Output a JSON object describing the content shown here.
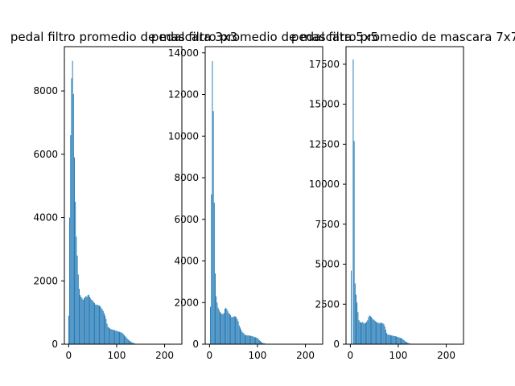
{
  "bar_color": "#1f77b4",
  "chart_data": [
    {
      "type": "bar",
      "title": "pedal filtro promedio de mascara 3x3",
      "xlabel": "",
      "ylabel": "",
      "xlim": [
        -9,
        236
      ],
      "ylim": [
        0,
        9400
      ],
      "xticks": [
        0,
        100,
        200
      ],
      "yticks": [
        0,
        2000,
        4000,
        6000,
        8000
      ],
      "x": [
        0,
        2,
        4,
        6,
        8,
        10,
        12,
        14,
        16,
        18,
        20,
        22,
        24,
        26,
        28,
        30,
        32,
        34,
        36,
        38,
        40,
        42,
        44,
        46,
        48,
        50,
        52,
        54,
        56,
        58,
        60,
        62,
        64,
        66,
        68,
        70,
        72,
        74,
        76,
        78,
        80,
        82,
        84,
        86,
        88,
        90,
        92,
        94,
        96,
        98,
        100,
        102,
        104,
        106,
        108,
        110,
        112,
        114,
        116,
        118,
        120,
        122,
        124,
        126,
        128,
        130,
        132,
        134,
        136,
        138,
        140,
        142,
        144,
        146,
        148,
        150,
        152,
        154,
        156,
        158,
        160,
        162,
        164,
        166,
        168,
        170,
        172,
        174,
        176,
        178,
        180,
        182,
        184,
        186,
        188,
        190,
        192,
        194,
        196,
        198,
        200,
        202,
        204,
        206,
        208,
        210,
        212,
        214,
        216,
        218,
        220
      ],
      "values": [
        900,
        4000,
        6600,
        8400,
        8950,
        7900,
        5900,
        4500,
        3400,
        2800,
        2200,
        1750,
        1550,
        1500,
        1450,
        1400,
        1450,
        1480,
        1520,
        1500,
        1550,
        1560,
        1500,
        1450,
        1400,
        1380,
        1330,
        1300,
        1250,
        1250,
        1240,
        1230,
        1220,
        1200,
        1150,
        1100,
        1050,
        980,
        900,
        800,
        650,
        550,
        520,
        500,
        480,
        470,
        460,
        450,
        440,
        430,
        420,
        410,
        400,
        390,
        380,
        370,
        350,
        320,
        280,
        250,
        220,
        180,
        150,
        120,
        100,
        80,
        60,
        45,
        30,
        20,
        10,
        5,
        3,
        2,
        1,
        0,
        0,
        0,
        0,
        0,
        0,
        0,
        0,
        0,
        0,
        0,
        0,
        0,
        0,
        0,
        0,
        0,
        0,
        0,
        0,
        0,
        0,
        0,
        0,
        0,
        0,
        0,
        0,
        0,
        0,
        0,
        0,
        0,
        0,
        0,
        0
      ]
    },
    {
      "type": "bar",
      "title": "pedal filtro promedio de mascara 5x5",
      "xlabel": "",
      "ylabel": "",
      "xlim": [
        -9,
        236
      ],
      "ylim": [
        0,
        14300
      ],
      "xticks": [
        0,
        100,
        200
      ],
      "yticks": [
        0,
        2000,
        4000,
        6000,
        8000,
        10000,
        12000,
        14000
      ],
      "x": [
        0,
        2,
        4,
        6,
        8,
        10,
        12,
        14,
        16,
        18,
        20,
        22,
        24,
        26,
        28,
        30,
        32,
        34,
        36,
        38,
        40,
        42,
        44,
        46,
        48,
        50,
        52,
        54,
        56,
        58,
        60,
        62,
        64,
        66,
        68,
        70,
        72,
        74,
        76,
        78,
        80,
        82,
        84,
        86,
        88,
        90,
        92,
        94,
        96,
        98,
        100,
        102,
        104,
        106,
        108,
        110,
        112,
        114,
        116,
        118,
        120,
        122,
        124,
        126,
        128,
        130,
        132,
        134,
        136,
        138,
        140,
        142,
        144,
        146,
        148,
        150,
        152,
        154,
        156,
        158,
        160,
        162,
        164,
        166,
        168,
        170,
        172,
        174,
        176,
        178,
        180,
        182,
        184,
        186,
        188,
        190,
        192,
        194,
        196,
        198,
        200,
        202,
        204,
        206,
        208,
        210,
        212,
        214,
        216,
        218,
        220
      ],
      "values": [
        0,
        1800,
        7200,
        13600,
        11200,
        6800,
        3400,
        2300,
        2000,
        1750,
        1650,
        1550,
        1500,
        1450,
        1450,
        1500,
        1700,
        1750,
        1700,
        1600,
        1500,
        1450,
        1400,
        1300,
        1300,
        1320,
        1340,
        1330,
        1300,
        1200,
        1100,
        900,
        800,
        700,
        600,
        550,
        500,
        450,
        440,
        430,
        420,
        420,
        410,
        400,
        390,
        380,
        360,
        340,
        330,
        320,
        300,
        250,
        200,
        150,
        120,
        80,
        50,
        40,
        30,
        20,
        10,
        5,
        3,
        2,
        1,
        0,
        0,
        0,
        0,
        0,
        0,
        0,
        0,
        0,
        0,
        0,
        0,
        0,
        0,
        0,
        0,
        0,
        0,
        0,
        0,
        0,
        0,
        0,
        0,
        0,
        0,
        0,
        0,
        0,
        0,
        0,
        0,
        0,
        0,
        0,
        0,
        0,
        0,
        0,
        0,
        0,
        0,
        0,
        0,
        0,
        0
      ]
    },
    {
      "type": "bar",
      "title": "pedal filtro promedio de mascara 7x7",
      "xlabel": "",
      "ylabel": "",
      "xlim": [
        -9,
        236
      ],
      "ylim": [
        0,
        18600
      ],
      "xticks": [
        0,
        100,
        200
      ],
      "yticks": [
        0,
        2500,
        5000,
        7500,
        10000,
        12500,
        15000,
        17500
      ],
      "x": [
        0,
        2,
        4,
        6,
        8,
        10,
        12,
        14,
        16,
        18,
        20,
        22,
        24,
        26,
        28,
        30,
        32,
        34,
        36,
        38,
        40,
        42,
        44,
        46,
        48,
        50,
        52,
        54,
        56,
        58,
        60,
        62,
        64,
        66,
        68,
        70,
        72,
        74,
        76,
        78,
        80,
        82,
        84,
        86,
        88,
        90,
        92,
        94,
        96,
        98,
        100,
        102,
        104,
        106,
        108,
        110,
        112,
        114,
        116,
        118,
        120,
        122,
        124,
        126,
        128,
        130,
        132,
        134,
        136,
        138,
        140,
        142,
        144,
        146,
        148,
        150,
        152,
        154,
        156,
        158,
        160,
        162,
        164,
        166,
        168,
        170,
        172,
        174,
        176,
        178,
        180,
        182,
        184,
        186,
        188,
        190,
        192,
        194,
        196,
        198,
        200,
        202,
        204,
        206,
        208,
        210,
        212,
        214,
        216,
        218,
        220
      ],
      "values": [
        0,
        4600,
        0,
        17800,
        12700,
        3800,
        3100,
        2600,
        2000,
        1500,
        1400,
        1350,
        1350,
        1400,
        1300,
        1300,
        1350,
        1400,
        1500,
        1700,
        1800,
        1750,
        1700,
        1600,
        1550,
        1500,
        1450,
        1400,
        1350,
        1350,
        1300,
        1350,
        1300,
        1350,
        1300,
        1250,
        1100,
        900,
        700,
        600,
        600,
        580,
        560,
        550,
        540,
        520,
        500,
        500,
        480,
        460,
        440,
        420,
        400,
        380,
        350,
        300,
        250,
        200,
        150,
        120,
        90,
        60,
        40,
        30,
        20,
        10,
        5,
        3,
        2,
        1,
        0,
        0,
        0,
        0,
        0,
        0,
        0,
        0,
        0,
        0,
        0,
        0,
        0,
        0,
        0,
        0,
        0,
        0,
        0,
        0,
        0,
        0,
        0,
        0,
        0,
        0,
        0,
        0,
        0,
        0,
        0,
        0,
        0,
        0,
        0,
        0,
        0,
        0,
        0,
        0,
        0
      ]
    }
  ]
}
